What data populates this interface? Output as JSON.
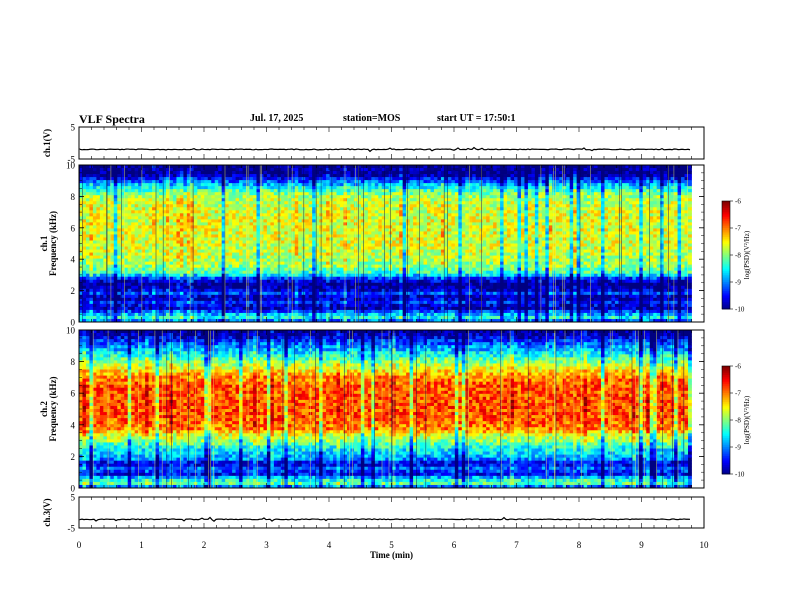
{
  "header": {
    "title": "VLF Spectra",
    "date": "Jul. 17, 2025",
    "station": "station=MOS",
    "start": "start UT = 17:50:1"
  },
  "chart_data": {
    "type": "heatmap",
    "title": "VLF Spectra",
    "xlabel": "Time (min)",
    "xlim": [
      0,
      10
    ],
    "x_ticks": [
      "0",
      "1",
      "2",
      "3",
      "4",
      "5",
      "6",
      "7",
      "8",
      "9",
      "10"
    ],
    "data_end_min": 9.8,
    "panels": [
      {
        "id": "ch1-waveform",
        "kind": "line",
        "ylabel": "ch.1(V)",
        "ylim": [
          -5,
          5
        ],
        "y_ticks": [
          "5",
          "-5"
        ],
        "baseline": -2.0
      },
      {
        "id": "ch1-spectrogram",
        "kind": "spectrogram",
        "ylabel": [
          "ch.1",
          "Frequency (kHz)"
        ],
        "ylim": [
          0,
          10
        ],
        "y_ticks": [
          "0",
          "2",
          "4",
          "6",
          "8",
          "10"
        ],
        "profile": [
          [
            0.0,
            -9.3
          ],
          [
            0.3,
            -8.4
          ],
          [
            0.6,
            -9.0
          ],
          [
            0.9,
            -9.9
          ],
          [
            1.2,
            -9.3
          ],
          [
            1.55,
            -9.9
          ],
          [
            1.8,
            -9.2
          ],
          [
            2.1,
            -9.8
          ],
          [
            2.4,
            -10.0
          ],
          [
            2.75,
            -9.4
          ],
          [
            3.1,
            -8.3
          ],
          [
            3.6,
            -7.9
          ],
          [
            4.5,
            -7.7
          ],
          [
            5.5,
            -7.6
          ],
          [
            6.5,
            -7.6
          ],
          [
            7.5,
            -7.7
          ],
          [
            8.1,
            -7.9
          ],
          [
            8.6,
            -8.5
          ],
          [
            9.0,
            -9.2
          ],
          [
            9.3,
            -9.8
          ],
          [
            9.5,
            -10.0
          ],
          [
            10.0,
            -10.0
          ]
        ],
        "colorbar": {
          "label": "log(PSD)(V²/Hz)",
          "range": [
            -10,
            -6
          ],
          "ticks": [
            "-6",
            "-7",
            "-8",
            "-9",
            "-10"
          ]
        }
      },
      {
        "id": "ch2-spectrogram",
        "kind": "spectrogram",
        "ylabel": [
          "ch.2",
          "Frequency (kHz)"
        ],
        "ylim": [
          0,
          10
        ],
        "y_ticks": [
          "0",
          "2",
          "4",
          "6",
          "8",
          "10"
        ],
        "profile": [
          [
            0.0,
            -9.4
          ],
          [
            0.3,
            -8.1
          ],
          [
            0.6,
            -8.6
          ],
          [
            0.9,
            -9.6
          ],
          [
            1.2,
            -9.0
          ],
          [
            1.55,
            -9.7
          ],
          [
            1.8,
            -9.0
          ],
          [
            2.1,
            -8.7
          ],
          [
            2.5,
            -8.5
          ],
          [
            2.9,
            -8.0
          ],
          [
            3.3,
            -7.7
          ],
          [
            3.7,
            -7.0
          ],
          [
            4.5,
            -6.8
          ],
          [
            5.5,
            -6.8
          ],
          [
            6.5,
            -6.8
          ],
          [
            7.0,
            -7.0
          ],
          [
            7.4,
            -7.4
          ],
          [
            7.9,
            -7.9
          ],
          [
            8.3,
            -8.3
          ],
          [
            8.8,
            -8.8
          ],
          [
            9.3,
            -9.3
          ],
          [
            9.7,
            -9.8
          ],
          [
            10.0,
            -10.0
          ]
        ],
        "colorbar": {
          "label": "log(PSD)(V²/Hz)",
          "range": [
            -10,
            -6
          ],
          "ticks": [
            "-6",
            "-7",
            "-8",
            "-9",
            "-10"
          ]
        }
      },
      {
        "id": "ch3-waveform",
        "kind": "line",
        "ylabel": "ch.3(V)",
        "ylim": [
          -5,
          5
        ],
        "y_ticks": [
          "5",
          "-5"
        ],
        "baseline": -2.2
      }
    ]
  }
}
